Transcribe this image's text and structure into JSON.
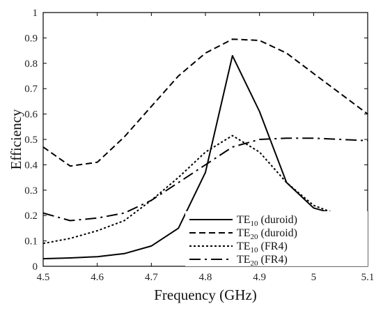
{
  "chart_data": {
    "type": "line",
    "xlabel": "Frequency (GHz)",
    "ylabel": "Efficiency",
    "xlim": [
      4.5,
      5.1
    ],
    "ylim": [
      0,
      1
    ],
    "xticks": [
      "4.5",
      "4.6",
      "4.7",
      "4.8",
      "4.9",
      "5",
      "5.1"
    ],
    "yticks": [
      "0",
      "0.1",
      "0.2",
      "0.3",
      "0.4",
      "0.5",
      "0.6",
      "0.7",
      "0.8",
      "0.9",
      "1"
    ],
    "grid": false,
    "legend_position": "bottom-right",
    "series": [
      {
        "name": "TE10 (duroid)",
        "legend_main": "TE",
        "legend_sub": "10",
        "legend_rest": " (duroid)",
        "style": "solid",
        "x": [
          4.5,
          4.55,
          4.6,
          4.65,
          4.7,
          4.75,
          4.8,
          4.85,
          4.9,
          4.95,
          5.0,
          5.05,
          5.1
        ],
        "y": [
          0.03,
          0.033,
          0.038,
          0.05,
          0.08,
          0.15,
          0.37,
          0.83,
          0.61,
          0.33,
          0.23,
          0.2,
          0.2
        ]
      },
      {
        "name": "TE20 (duroid)",
        "legend_main": "TE",
        "legend_sub": "20",
        "legend_rest": " (duroid)",
        "style": "dashed",
        "x": [
          4.5,
          4.55,
          4.6,
          4.65,
          4.7,
          4.75,
          4.8,
          4.85,
          4.9,
          4.95,
          5.0,
          5.05,
          5.1
        ],
        "y": [
          0.47,
          0.395,
          0.41,
          0.51,
          0.63,
          0.75,
          0.84,
          0.895,
          0.89,
          0.84,
          0.76,
          0.68,
          0.6
        ]
      },
      {
        "name": "TE10 (FR4)",
        "legend_main": "TE",
        "legend_sub": "10",
        "legend_rest": " (FR4)",
        "style": "dotted",
        "x": [
          4.5,
          4.55,
          4.6,
          4.65,
          4.7,
          4.75,
          4.8,
          4.85,
          4.9,
          4.95,
          5.0,
          5.05,
          5.1
        ],
        "y": [
          0.09,
          0.11,
          0.14,
          0.18,
          0.26,
          0.35,
          0.45,
          0.515,
          0.45,
          0.33,
          0.24,
          0.2,
          0.185
        ]
      },
      {
        "name": "TE20 (FR4)",
        "legend_main": "TE",
        "legend_sub": "20",
        "legend_rest": " (FR4)",
        "style": "dashdot",
        "x": [
          4.5,
          4.55,
          4.6,
          4.65,
          4.7,
          4.75,
          4.8,
          4.85,
          4.9,
          4.95,
          5.0,
          5.05,
          5.1
        ],
        "y": [
          0.21,
          0.18,
          0.19,
          0.21,
          0.26,
          0.33,
          0.4,
          0.47,
          0.5,
          0.505,
          0.505,
          0.5,
          0.495
        ]
      }
    ]
  }
}
